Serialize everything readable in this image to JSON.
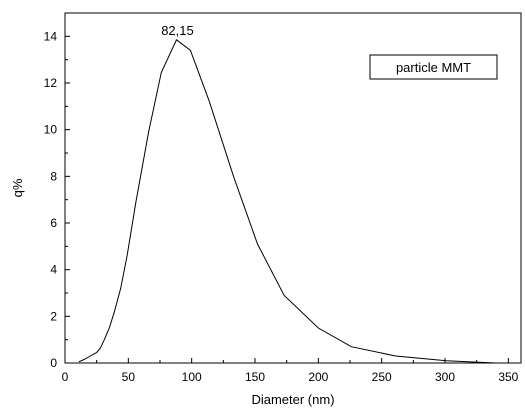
{
  "chart_data": {
    "type": "line",
    "title": "",
    "xlabel": "Diameter (nm)",
    "ylabel": "q%",
    "xlim": [
      0,
      360
    ],
    "ylim": [
      0,
      15
    ],
    "xticks": [
      0,
      50,
      100,
      150,
      200,
      250,
      300,
      350
    ],
    "yticks": [
      0,
      2,
      4,
      6,
      8,
      10,
      12,
      14
    ],
    "grid": false,
    "legend": {
      "position": "top-right",
      "entries": [
        "particle MMT"
      ]
    },
    "annotations": [
      {
        "text": "82,15",
        "x": 88,
        "y": 13.85
      }
    ],
    "series": [
      {
        "name": "particle MMT",
        "x": [
          11,
          15,
          20,
          25,
          28,
          31,
          35,
          39,
          44,
          49,
          56,
          66,
          76,
          88,
          99,
          114,
          133,
          152,
          173,
          200,
          226,
          261,
          301,
          340
        ],
        "y": [
          0.05,
          0.15,
          0.3,
          0.45,
          0.65,
          1.0,
          1.5,
          2.2,
          3.2,
          4.6,
          6.9,
          9.9,
          12.45,
          13.85,
          13.4,
          11.2,
          8.0,
          5.1,
          2.9,
          1.5,
          0.7,
          0.3,
          0.1,
          0.0
        ]
      }
    ]
  }
}
